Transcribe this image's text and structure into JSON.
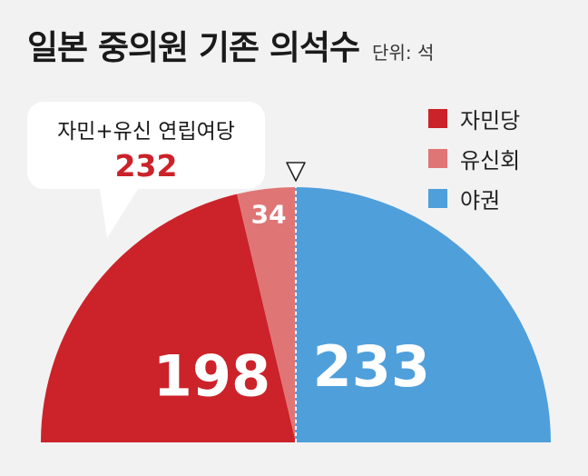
{
  "title": "일본 중의원 기존 의석수",
  "unit": "단위: 석",
  "callout": {
    "label": "자민+유신 연립여당",
    "value": "232"
  },
  "chart_data": {
    "type": "pie",
    "variant": "half-donut-parliament",
    "unit": "석",
    "categories": [
      "자민당",
      "유신회",
      "야권"
    ],
    "values": [
      198,
      34,
      233
    ],
    "colors": [
      "#cc2229",
      "#e07575",
      "#4f9fdb"
    ],
    "label_colors": [
      "#ffffff",
      "#ffffff",
      "#ffffff"
    ],
    "majority_marker": true,
    "legend_position": "top-right",
    "annotations": [
      {
        "text": "자민+유신 연립여당",
        "value": 232,
        "covers": [
          "자민당",
          "유신회"
        ]
      }
    ]
  }
}
